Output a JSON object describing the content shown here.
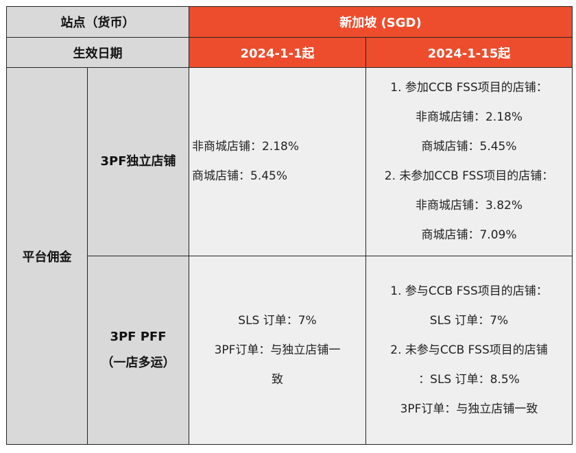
{
  "table": {
    "header": {
      "site_label": "站点（货币）",
      "site_value": "新加坡 (SGD)",
      "date_label": "生效日期",
      "date_col1": "2024-1-1起",
      "date_col2": "2024-1-15起"
    },
    "section_label": "平台佣金",
    "rows": [
      {
        "label": [
          "3PF独立店铺"
        ],
        "col1": [
          "非商城店铺：2.18%",
          "商城店铺：5.45%"
        ],
        "col2": [
          "1. 参加CCB FSS项目的店铺：",
          "非商城店铺：2.18%",
          "商城店铺：5.45%",
          "2. 未参加CCB FSS项目的店铺：",
          "非商城店铺：3.82%",
          "商城店铺：7.09%"
        ]
      },
      {
        "label": [
          "3PF PFF",
          "（一店多运）"
        ],
        "col1": [
          "SLS 订单：7%",
          "3PF订单：与独立店铺一",
          "致"
        ],
        "col2": [
          "1. 参与CCB FSS项目的店铺：",
          "SLS 订单：7%",
          "2. 未参与CCB FSS项目的店铺",
          "：SLS 订单：8.5%",
          "3PF订单：与独立店铺一致"
        ]
      }
    ]
  }
}
